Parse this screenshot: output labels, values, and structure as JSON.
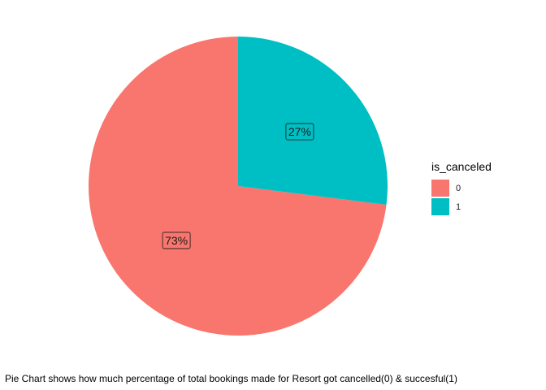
{
  "chart_data": {
    "type": "pie",
    "categories": [
      "0",
      "1"
    ],
    "values": [
      73,
      27
    ],
    "value_labels": [
      "73%",
      "27%"
    ],
    "colors": [
      "#F8766D",
      "#00BFC4"
    ],
    "legend": {
      "title": "is_canceled",
      "placement": "right",
      "entries": [
        "0",
        "1"
      ]
    },
    "caption": "Pie Chart shows how much percentage of total bookings made for Resort got cancelled(0) & succesful(1)",
    "title": "",
    "start_angle": "12 o'clock",
    "direction": "clockwise, last category first"
  }
}
